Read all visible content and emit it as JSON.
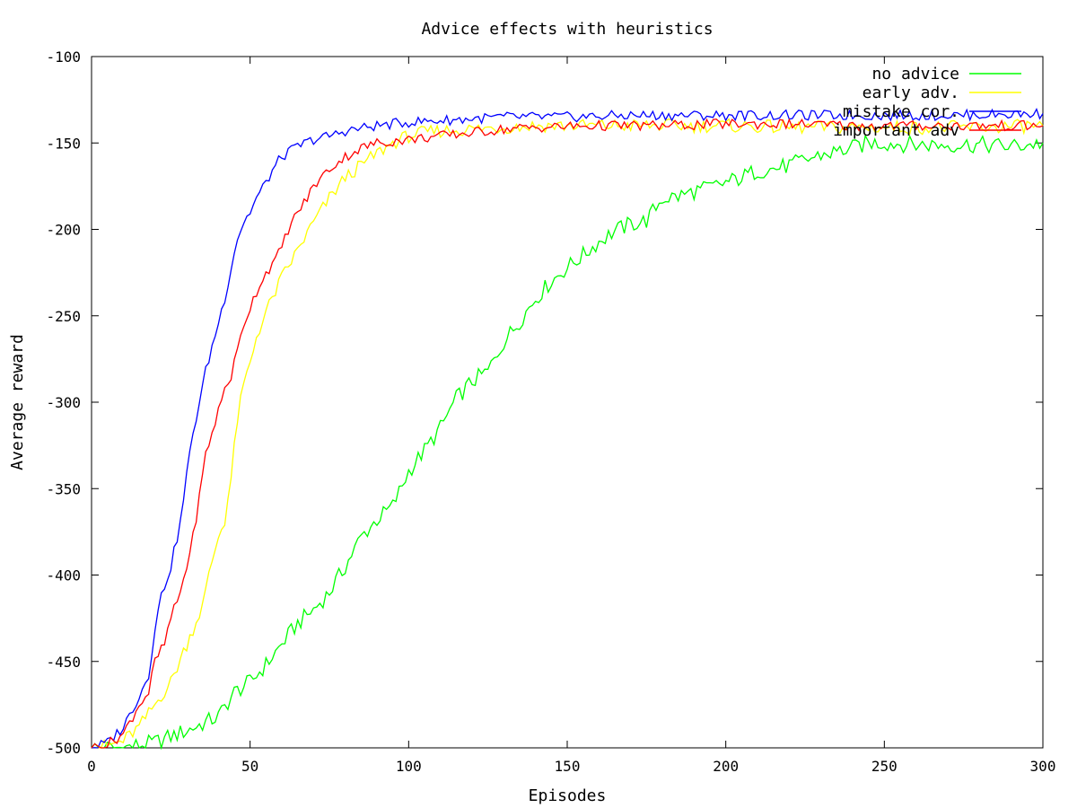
{
  "chart_data": {
    "type": "line",
    "title": "Advice effects with heuristics",
    "xlabel": "Episodes",
    "ylabel": "Average reward",
    "xlim": [
      0,
      300
    ],
    "ylim": [
      -500,
      -100
    ],
    "x_ticks": [
      "0",
      "50",
      "100",
      "150",
      "200",
      "250",
      "300"
    ],
    "y_ticks": [
      "-100",
      "-150",
      "-200",
      "-250",
      "-300",
      "-350",
      "-400",
      "-450",
      "-500"
    ],
    "grid": false,
    "legend_position": "top-right",
    "series": [
      {
        "name": "no advice",
        "color": "#00ff00",
        "points": [
          [
            0,
            -500
          ],
          [
            10,
            -500
          ],
          [
            20,
            -497
          ],
          [
            30,
            -490
          ],
          [
            40,
            -482
          ],
          [
            45,
            -468
          ],
          [
            50,
            -462
          ],
          [
            55,
            -452
          ],
          [
            60,
            -440
          ],
          [
            65,
            -428
          ],
          [
            70,
            -420
          ],
          [
            75,
            -410
          ],
          [
            80,
            -395
          ],
          [
            85,
            -378
          ],
          [
            90,
            -368
          ],
          [
            95,
            -360
          ],
          [
            100,
            -340
          ],
          [
            105,
            -328
          ],
          [
            110,
            -315
          ],
          [
            115,
            -298
          ],
          [
            120,
            -288
          ],
          [
            125,
            -282
          ],
          [
            130,
            -265
          ],
          [
            135,
            -253
          ],
          [
            140,
            -240
          ],
          [
            145,
            -230
          ],
          [
            150,
            -222
          ],
          [
            155,
            -215
          ],
          [
            160,
            -207
          ],
          [
            165,
            -201
          ],
          [
            170,
            -197
          ],
          [
            175,
            -195
          ],
          [
            180,
            -182
          ],
          [
            185,
            -181
          ],
          [
            190,
            -178
          ],
          [
            195,
            -176
          ],
          [
            200,
            -173
          ],
          [
            205,
            -170
          ],
          [
            210,
            -166
          ],
          [
            215,
            -165
          ],
          [
            220,
            -163
          ],
          [
            225,
            -160
          ],
          [
            230,
            -157
          ],
          [
            235,
            -155
          ],
          [
            240,
            -153
          ],
          [
            245,
            -150
          ],
          [
            250,
            -150
          ],
          [
            260,
            -151
          ],
          [
            270,
            -151
          ],
          [
            280,
            -151
          ],
          [
            290,
            -152
          ],
          [
            300,
            -150
          ]
        ]
      },
      {
        "name": "early adv.",
        "color": "#ffff00",
        "points": [
          [
            0,
            -500
          ],
          [
            5,
            -499
          ],
          [
            10,
            -496
          ],
          [
            15,
            -488
          ],
          [
            20,
            -475
          ],
          [
            25,
            -462
          ],
          [
            30,
            -440
          ],
          [
            35,
            -418
          ],
          [
            38,
            -392
          ],
          [
            40,
            -378
          ],
          [
            42,
            -368
          ],
          [
            44,
            -344
          ],
          [
            46,
            -310
          ],
          [
            48,
            -290
          ],
          [
            50,
            -278
          ],
          [
            52,
            -262
          ],
          [
            55,
            -248
          ],
          [
            58,
            -236
          ],
          [
            60,
            -228
          ],
          [
            65,
            -212
          ],
          [
            70,
            -196
          ],
          [
            75,
            -182
          ],
          [
            80,
            -170
          ],
          [
            85,
            -163
          ],
          [
            90,
            -156
          ],
          [
            95,
            -150
          ],
          [
            100,
            -146
          ],
          [
            105,
            -144
          ],
          [
            110,
            -143
          ],
          [
            120,
            -142
          ],
          [
            130,
            -141
          ],
          [
            140,
            -140
          ],
          [
            160,
            -140
          ],
          [
            180,
            -140
          ],
          [
            200,
            -140
          ],
          [
            220,
            -141
          ],
          [
            240,
            -141
          ],
          [
            260,
            -141
          ],
          [
            280,
            -141
          ],
          [
            300,
            -140
          ]
        ]
      },
      {
        "name": "mistake cor.",
        "color": "#0000ff",
        "points": [
          [
            0,
            -500
          ],
          [
            5,
            -497
          ],
          [
            10,
            -488
          ],
          [
            15,
            -470
          ],
          [
            18,
            -458
          ],
          [
            20,
            -430
          ],
          [
            22,
            -412
          ],
          [
            25,
            -395
          ],
          [
            28,
            -370
          ],
          [
            30,
            -342
          ],
          [
            32,
            -318
          ],
          [
            34,
            -300
          ],
          [
            36,
            -282
          ],
          [
            38,
            -268
          ],
          [
            40,
            -254
          ],
          [
            42,
            -240
          ],
          [
            44,
            -222
          ],
          [
            46,
            -205
          ],
          [
            48,
            -196
          ],
          [
            50,
            -190
          ],
          [
            52,
            -182
          ],
          [
            55,
            -173
          ],
          [
            58,
            -163
          ],
          [
            60,
            -158
          ],
          [
            65,
            -152
          ],
          [
            70,
            -148
          ],
          [
            75,
            -146
          ],
          [
            80,
            -143
          ],
          [
            90,
            -140
          ],
          [
            100,
            -138
          ],
          [
            110,
            -137
          ],
          [
            120,
            -136
          ],
          [
            130,
            -135
          ],
          [
            150,
            -135
          ],
          [
            170,
            -134
          ],
          [
            190,
            -134
          ],
          [
            210,
            -134
          ],
          [
            230,
            -134
          ],
          [
            250,
            -134
          ],
          [
            270,
            -134
          ],
          [
            300,
            -133
          ]
        ]
      },
      {
        "name": "important adv",
        "color": "#ff0000",
        "points": [
          [
            0,
            -500
          ],
          [
            5,
            -498
          ],
          [
            10,
            -492
          ],
          [
            15,
            -475
          ],
          [
            18,
            -468
          ],
          [
            20,
            -450
          ],
          [
            23,
            -440
          ],
          [
            25,
            -425
          ],
          [
            28,
            -410
          ],
          [
            30,
            -395
          ],
          [
            32,
            -378
          ],
          [
            34,
            -355
          ],
          [
            36,
            -330
          ],
          [
            38,
            -318
          ],
          [
            40,
            -305
          ],
          [
            42,
            -292
          ],
          [
            44,
            -285
          ],
          [
            46,
            -270
          ],
          [
            48,
            -255
          ],
          [
            50,
            -245
          ],
          [
            52,
            -236
          ],
          [
            55,
            -225
          ],
          [
            58,
            -218
          ],
          [
            60,
            -210
          ],
          [
            62,
            -200
          ],
          [
            65,
            -190
          ],
          [
            68,
            -182
          ],
          [
            70,
            -175
          ],
          [
            75,
            -165
          ],
          [
            80,
            -158
          ],
          [
            85,
            -153
          ],
          [
            90,
            -150
          ],
          [
            100,
            -148
          ],
          [
            110,
            -146
          ],
          [
            120,
            -144
          ],
          [
            130,
            -142
          ],
          [
            140,
            -141
          ],
          [
            160,
            -140
          ],
          [
            180,
            -140
          ],
          [
            200,
            -139
          ],
          [
            220,
            -139
          ],
          [
            240,
            -140
          ],
          [
            260,
            -140
          ],
          [
            280,
            -140
          ],
          [
            300,
            -140
          ]
        ]
      }
    ]
  }
}
